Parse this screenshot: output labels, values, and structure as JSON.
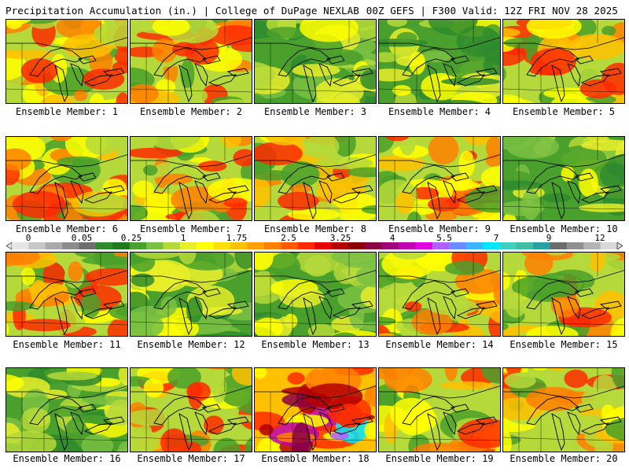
{
  "header": {
    "title": "Precipitation Accumulation (in.) | College of DuPage NEXLAB",
    "run_info": "00Z GEFS | F300 Valid: 12Z FRI NOV 28 2025"
  },
  "colorbar": {
    "tick_labels": [
      "0",
      "0.05",
      "0.25",
      "1",
      "1.75",
      "2.5",
      "3.25",
      "4",
      "5.5",
      "7",
      "9",
      "12"
    ],
    "colors": [
      "#e6e6e6",
      "#c8c8c8",
      "#aaaaaa",
      "#8c8c8c",
      "#6e6e6e",
      "#2e8b2e",
      "#1f7a1f",
      "#4aa02c",
      "#7ac143",
      "#b5d93a",
      "#e8ee2a",
      "#ffff00",
      "#ffe000",
      "#ffc000",
      "#ffa000",
      "#ff8000",
      "#ff5a00",
      "#ff2a00",
      "#e60000",
      "#b40000",
      "#8b0000",
      "#8b0045",
      "#a0007a",
      "#c000b0",
      "#e000e0",
      "#b060ff",
      "#6a8cff",
      "#3cb4ff",
      "#00e6ff",
      "#40d0c0",
      "#40c0a0",
      "#2aa0a0",
      "#6c6c6c",
      "#909090",
      "#b4b4b4",
      "#d8d8d8"
    ]
  },
  "members": [
    {
      "label": "Ensemble Member: 1"
    },
    {
      "label": "Ensemble Member: 2"
    },
    {
      "label": "Ensemble Member: 3"
    },
    {
      "label": "Ensemble Member: 4"
    },
    {
      "label": "Ensemble Member: 5"
    },
    {
      "label": "Ensemble Member: 6"
    },
    {
      "label": "Ensemble Member: 7"
    },
    {
      "label": "Ensemble Member: 8"
    },
    {
      "label": "Ensemble Member: 9"
    },
    {
      "label": "Ensemble Member: 10"
    },
    {
      "label": "Ensemble Member: 11"
    },
    {
      "label": "Ensemble Member: 12"
    },
    {
      "label": "Ensemble Member: 13"
    },
    {
      "label": "Ensemble Member: 14"
    },
    {
      "label": "Ensemble Member: 15"
    },
    {
      "label": "Ensemble Member: 16"
    },
    {
      "label": "Ensemble Member: 17"
    },
    {
      "label": "Ensemble Member: 18"
    },
    {
      "label": "Ensemble Member: 19"
    },
    {
      "label": "Ensemble Member: 20"
    }
  ]
}
